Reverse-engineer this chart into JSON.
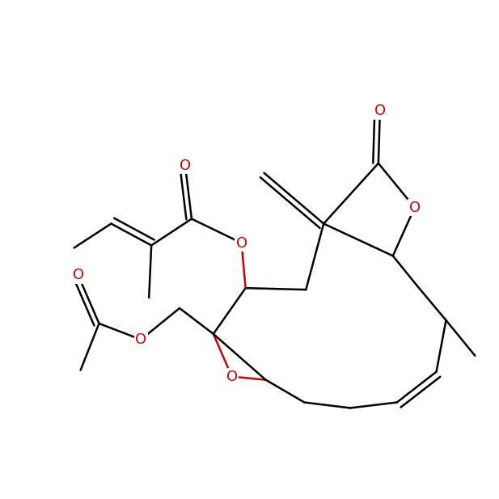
{
  "lw": 1.8,
  "fs": 13,
  "bc": "#000000",
  "hc": "#cc0000",
  "bg": "#ffffff",
  "dbl_off": 0.013
}
